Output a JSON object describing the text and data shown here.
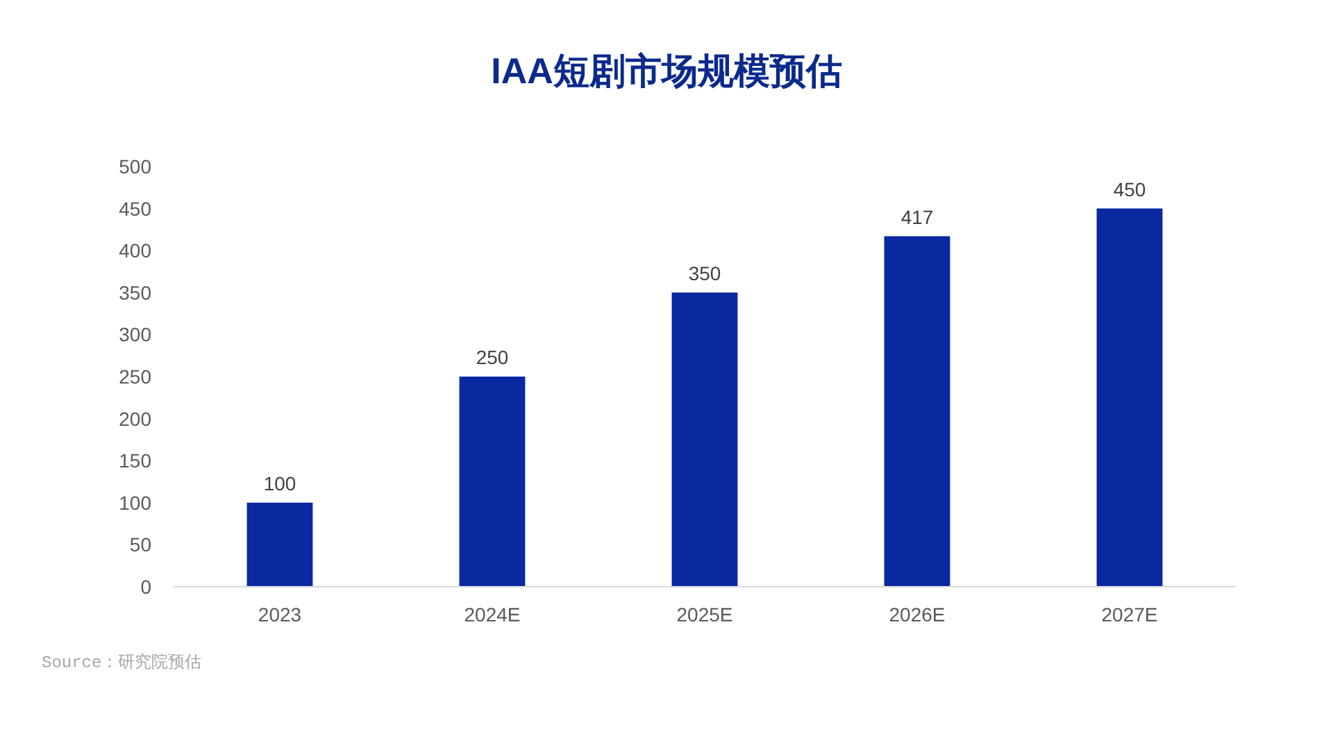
{
  "chart_data": {
    "type": "bar",
    "title": "IAA短剧市场规模预估",
    "categories": [
      "2023",
      "2024E",
      "2025E",
      "2026E",
      "2027E"
    ],
    "values": [
      100,
      250,
      350,
      417,
      450
    ],
    "color": "#0a28a0",
    "ylim": [
      0,
      500
    ],
    "yticks": [
      0,
      50,
      100,
      150,
      200,
      250,
      300,
      350,
      400,
      450,
      500
    ],
    "grid": false,
    "data_labels": true,
    "annotations": [
      "Source：研究院预估"
    ]
  }
}
